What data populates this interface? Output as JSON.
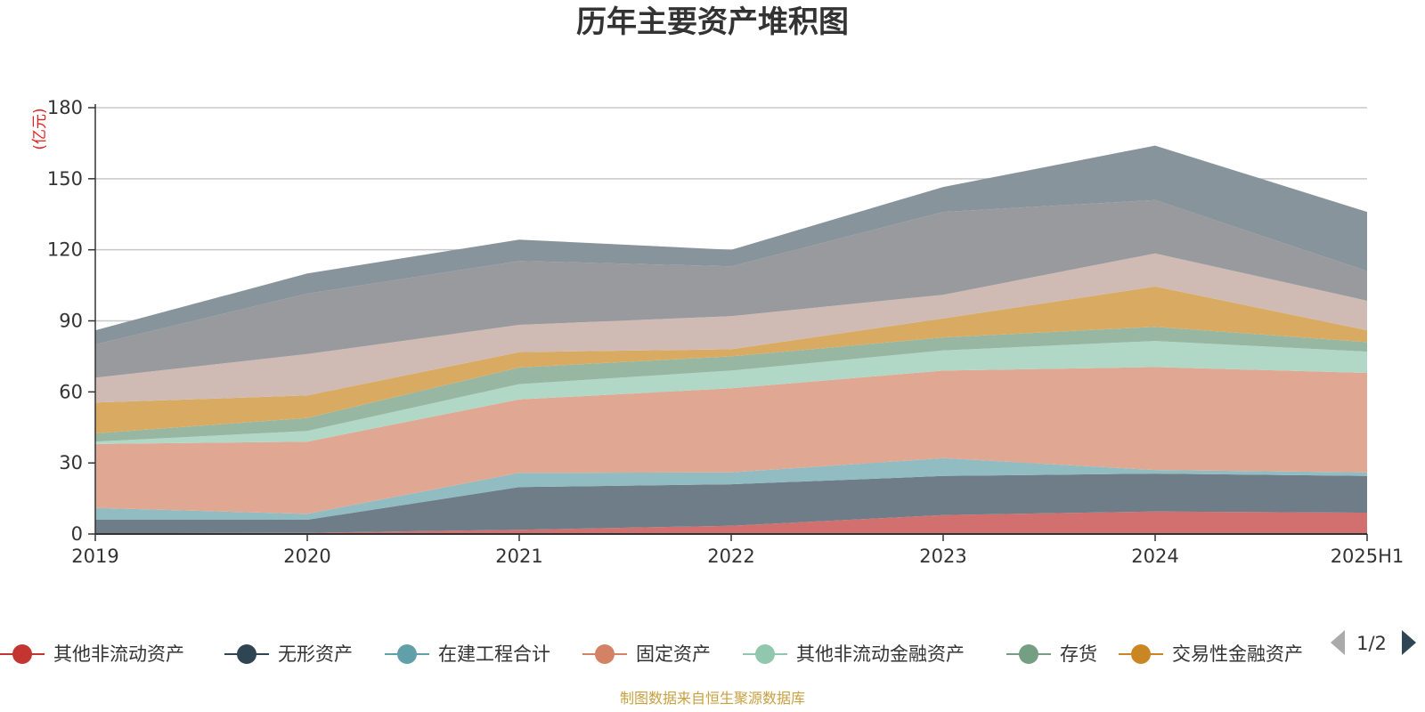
{
  "chart_data": {
    "type": "area",
    "stacked": true,
    "title": "历年主要资产堆积图",
    "unit_label": "(亿元)",
    "categories": [
      "2019",
      "2020",
      "2021",
      "2022",
      "2023",
      "2024",
      "2025H1"
    ],
    "ylim": [
      0,
      180
    ],
    "yticks": [
      0,
      30,
      60,
      90,
      120,
      150,
      180
    ],
    "grid": true,
    "series": [
      {
        "name": "其他非流动资产",
        "color": "#c23531",
        "fill": "#d27070",
        "values": [
          0.3,
          0.5,
          1.8,
          3.5,
          8,
          9.5,
          9
        ]
      },
      {
        "name": "无形资产",
        "color": "#2f4554",
        "fill": "#6e7d88",
        "values": [
          5.7,
          5.5,
          18,
          17.5,
          16.5,
          16,
          15.5
        ]
      },
      {
        "name": "在建工程合计",
        "color": "#61a0a8",
        "fill": "#90bcc2",
        "values": [
          5,
          2.5,
          6,
          5,
          7.5,
          1.5,
          1.5
        ]
      },
      {
        "name": "固定资产",
        "color": "#d48265",
        "fill": "#e0a893",
        "values": [
          27,
          30.5,
          31,
          35.5,
          37,
          43.5,
          42
        ]
      },
      {
        "name": "其他非流动金融资产",
        "color": "#91c7ae",
        "fill": "#b1d8c6",
        "values": [
          1,
          4.5,
          6.5,
          7.5,
          8.5,
          11,
          9
        ]
      },
      {
        "name": "存货",
        "color": "#749f83",
        "fill": "#98b7a2",
        "values": [
          3.5,
          5.5,
          7,
          6,
          5.5,
          6,
          4
        ]
      },
      {
        "name": "交易性金融资产",
        "color": "#ca8622",
        "fill": "#d9ab62",
        "values": [
          13,
          9.5,
          6.5,
          3,
          8,
          17,
          5
        ]
      },
      {
        "name": "",
        "color": "#bda29a",
        "fill": "#d0bbb4",
        "values": [
          10.5,
          17.5,
          11.5,
          14,
          10,
          14,
          12.5
        ]
      },
      {
        "name": "",
        "color": "#6e7074",
        "fill": "#989a9d",
        "values": [
          14,
          25.5,
          27,
          21,
          35,
          22.5,
          12.5
        ]
      },
      {
        "name": "",
        "color": "#546570",
        "fill": "#87949b",
        "values": [
          6,
          8.5,
          9,
          7,
          10.5,
          23,
          25
        ]
      }
    ]
  },
  "legend": {
    "pager": {
      "text": "1/2"
    }
  },
  "footer": {
    "source": "制图数据来自恒生聚源数据库"
  }
}
